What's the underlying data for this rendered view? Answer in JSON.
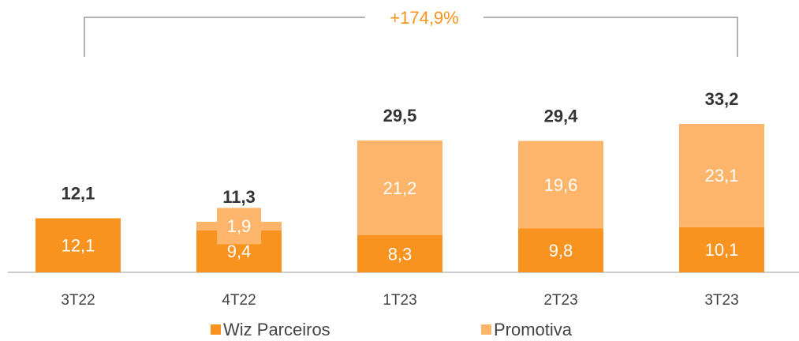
{
  "chart_data": {
    "type": "stacked_bar",
    "annotation": "+174,9%",
    "categories": [
      "3T22",
      "4T22",
      "1T23",
      "2T23",
      "3T23"
    ],
    "series": [
      {
        "name": "Wiz Parceiros",
        "color": "#f7931e",
        "values": [
          12.1,
          9.4,
          8.3,
          9.8,
          10.1
        ],
        "value_labels": [
          "12,1",
          "9,4",
          "8,3",
          "9,8",
          "10,1"
        ]
      },
      {
        "name": "Promotiva",
        "color": "#fdb56b",
        "values": [
          null,
          1.9,
          21.2,
          19.6,
          23.1
        ],
        "value_labels": [
          null,
          "1,9",
          "21,2",
          "19,6",
          "23,1"
        ]
      }
    ],
    "totals": [
      12.1,
      11.3,
      29.5,
      29.4,
      33.2
    ],
    "total_labels": [
      "12,1",
      "11,3",
      "29,5",
      "29,4",
      "33,2"
    ]
  }
}
